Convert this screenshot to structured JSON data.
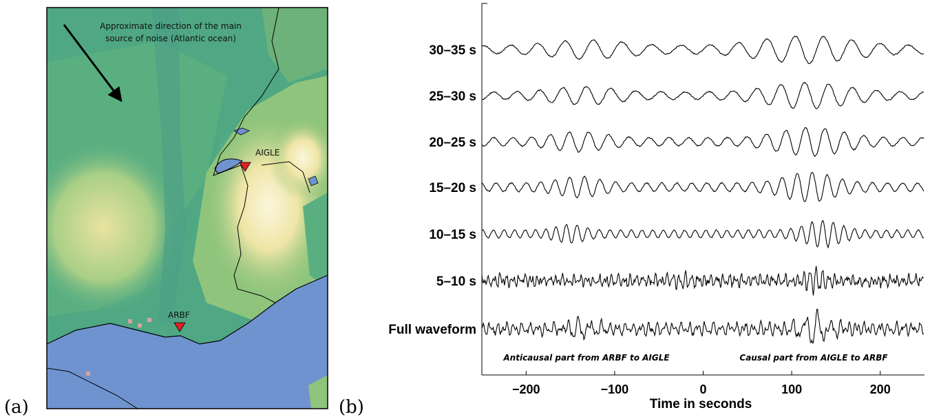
{
  "panel_a": {
    "label": "(a)",
    "annotation_line1": "Approximate direction of the main",
    "annotation_line2": "source of noise (Atlantic ocean)",
    "stations": [
      {
        "name": "AIGLE"
      },
      {
        "name": "ARBF"
      }
    ],
    "colors": {
      "sea": "#6f93cf",
      "lowland": "#4fa883",
      "midland": "#8ec47c",
      "highland": "#efe5a6",
      "peak": "#fbf6dc",
      "station_marker": "#e21f26"
    }
  },
  "panel_b": {
    "label": "(b)",
    "xlabel": "Time in seconds",
    "left_note": "Anticausal part from ARBF to AIGLE",
    "right_note": "Causal part from AIGLE to ARBF"
  },
  "chart_data": {
    "type": "line",
    "title": "",
    "xlabel": "Time in seconds",
    "ylabel": "",
    "xlim": [
      -250,
      250
    ],
    "xticks": [
      -200,
      -100,
      0,
      100,
      200
    ],
    "grid": false,
    "series": [
      {
        "name": "30–35 s",
        "period_s": 32,
        "causal_center": 115,
        "anticausal_center": -130
      },
      {
        "name": "25–30 s",
        "period_s": 27,
        "causal_center": 118,
        "anticausal_center": -135
      },
      {
        "name": "20–25 s",
        "period_s": 22,
        "causal_center": 122,
        "anticausal_center": -140
      },
      {
        "name": "15–20 s",
        "period_s": 17,
        "causal_center": 120,
        "anticausal_center": -140
      },
      {
        "name": "10–15 s",
        "period_s": 12,
        "causal_center": 135,
        "anticausal_center": -150
      },
      {
        "name": "5–10 s",
        "period_s": 7,
        "causal_center": 128,
        "anticausal_center": -22
      },
      {
        "name": "Full waveform",
        "period_s": 10,
        "causal_center": 125,
        "anticausal_center": -135
      }
    ]
  }
}
